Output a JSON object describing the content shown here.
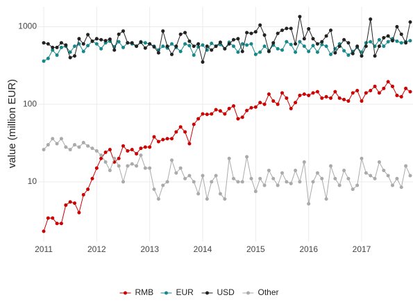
{
  "chart_data": {
    "type": "line",
    "y_label": "value (million EUR)",
    "log_y": true,
    "grid": true,
    "legend_position": "bottom",
    "xlim": [
      2011,
      2017.917
    ],
    "xticks": [
      2011,
      2012,
      2013,
      2014,
      2015,
      2016,
      2017
    ],
    "ylim": [
      1.8,
      1800
    ],
    "yticks": [
      10,
      100,
      1000
    ],
    "x": [
      2011,
      2011.083,
      2011.167,
      2011.25,
      2011.333,
      2011.417,
      2011.5,
      2011.583,
      2011.667,
      2011.75,
      2011.833,
      2011.917,
      2012,
      2012.083,
      2012.167,
      2012.25,
      2012.333,
      2012.417,
      2012.5,
      2012.583,
      2012.667,
      2012.75,
      2012.833,
      2012.917,
      2013,
      2013.083,
      2013.167,
      2013.25,
      2013.333,
      2013.417,
      2013.5,
      2013.583,
      2013.667,
      2013.75,
      2013.833,
      2013.917,
      2014,
      2014.083,
      2014.167,
      2014.25,
      2014.333,
      2014.417,
      2014.5,
      2014.583,
      2014.667,
      2014.75,
      2014.833,
      2014.917,
      2015,
      2015.083,
      2015.167,
      2015.25,
      2015.333,
      2015.417,
      2015.5,
      2015.583,
      2015.667,
      2015.75,
      2015.833,
      2015.917,
      2016,
      2016.083,
      2016.167,
      2016.25,
      2016.333,
      2016.417,
      2016.5,
      2016.583,
      2016.667,
      2016.75,
      2016.833,
      2016.917,
      2017,
      2017.083,
      2017.167,
      2017.25,
      2017.333,
      2017.417,
      2017.5,
      2017.583,
      2017.667,
      2017.75,
      2017.833,
      2017.917
    ],
    "series": [
      {
        "name": "RMB",
        "color": "#cc0000",
        "values": [
          2.3,
          3.4,
          3.4,
          2.9,
          2.9,
          5,
          5.5,
          5.3,
          4,
          6.8,
          8,
          11,
          15,
          20,
          24,
          26,
          18,
          20,
          29,
          25,
          26,
          23,
          27,
          28,
          28,
          38,
          33,
          35,
          36,
          36,
          44,
          51,
          44,
          31,
          55,
          65,
          75,
          74,
          75,
          85,
          82,
          75,
          88,
          95,
          65,
          68,
          83,
          90,
          92,
          105,
          100,
          135,
          110,
          100,
          140,
          120,
          88,
          105,
          130,
          135,
          130,
          140,
          145,
          120,
          125,
          120,
          145,
          120,
          115,
          110,
          140,
          150,
          110,
          140,
          150,
          170,
          140,
          160,
          195,
          170,
          130,
          125,
          160,
          145
        ]
      },
      {
        "name": "EUR",
        "color": "#17888a",
        "values": [
          360,
          390,
          500,
          430,
          540,
          560,
          470,
          560,
          600,
          480,
          570,
          650,
          600,
          520,
          620,
          650,
          550,
          640,
          540,
          620,
          600,
          560,
          640,
          620,
          600,
          560,
          500,
          560,
          530,
          600,
          540,
          480,
          600,
          570,
          430,
          550,
          580,
          500,
          610,
          560,
          590,
          520,
          630,
          560,
          470,
          600,
          580,
          600,
          440,
          470,
          560,
          490,
          580,
          520,
          500,
          640,
          590,
          470,
          640,
          560,
          480,
          570,
          470,
          590,
          560,
          440,
          520,
          600,
          490,
          430,
          480,
          540,
          470,
          620,
          640,
          560,
          680,
          560,
          640,
          700,
          650,
          620,
          640,
          660
        ]
      },
      {
        "name": "USD",
        "color": "#222222",
        "values": [
          620,
          600,
          540,
          540,
          620,
          580,
          400,
          420,
          700,
          600,
          790,
          650,
          700,
          680,
          660,
          690,
          500,
          800,
          880,
          620,
          620,
          560,
          630,
          530,
          600,
          550,
          460,
          880,
          560,
          440,
          560,
          800,
          840,
          650,
          560,
          600,
          350,
          560,
          500,
          560,
          630,
          520,
          600,
          680,
          700,
          480,
          840,
          820,
          860,
          1050,
          780,
          480,
          620,
          820,
          900,
          950,
          950,
          600,
          1350,
          700,
          940,
          700,
          600,
          640,
          760,
          900,
          460,
          560,
          680,
          620,
          450,
          560,
          420,
          560,
          1250,
          420,
          560,
          720,
          760,
          660,
          1000,
          800,
          620,
          1150
        ]
      },
      {
        "name": "Other",
        "color": "#aaaaaa",
        "values": [
          26,
          30,
          36,
          31,
          36,
          28,
          26,
          30,
          28,
          32,
          29,
          27,
          25,
          22,
          18,
          14,
          20,
          16,
          10,
          16,
          17,
          16,
          22,
          15,
          15,
          8,
          6,
          9,
          10,
          19,
          13,
          15,
          11,
          12,
          10,
          7,
          12,
          6,
          10,
          12,
          7,
          6,
          20,
          11,
          10,
          10,
          21,
          11,
          7.5,
          11,
          9,
          14,
          11,
          9,
          13,
          10,
          9.5,
          14,
          10,
          18,
          5.2,
          10,
          13,
          11,
          6,
          16,
          11,
          9,
          14,
          11,
          8,
          9,
          20,
          13,
          12,
          11,
          18,
          14,
          12,
          9,
          11,
          8.5,
          16,
          12
        ]
      }
    ]
  }
}
